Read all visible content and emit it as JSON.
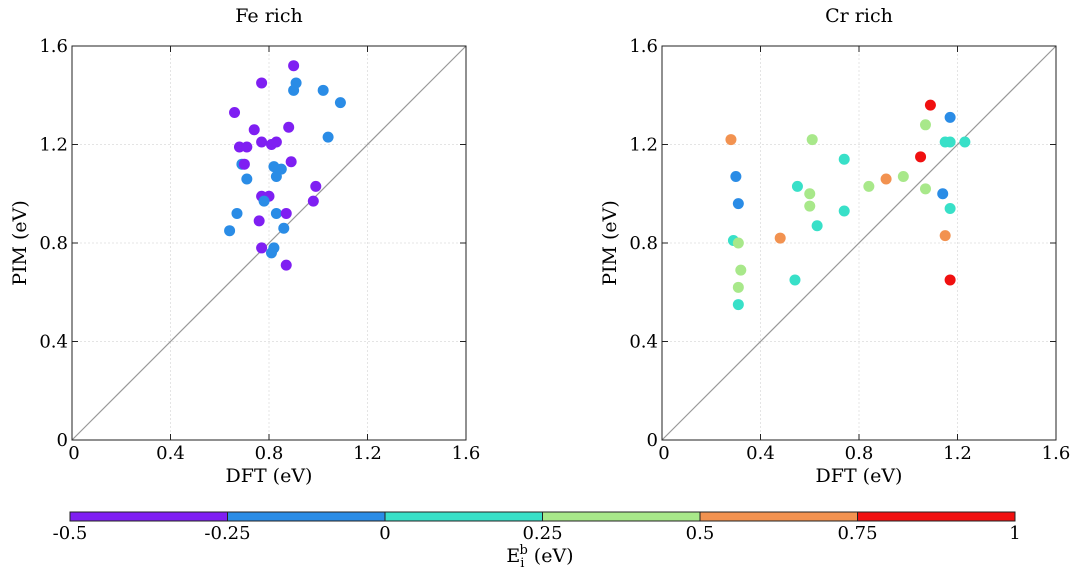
{
  "chart_data": [
    {
      "type": "scatter",
      "title": "Fe rich",
      "xlabel": "DFT (eV)",
      "ylabel": "PIM (eV)",
      "xlim": [
        0,
        1.6
      ],
      "ylim": [
        0,
        1.6
      ],
      "x_ticks": [
        "0",
        "0.4",
        "0.8",
        "1.2",
        "1.6"
      ],
      "y_ticks": [
        "0",
        "0.4",
        "0.8",
        "1.2",
        "1.6"
      ],
      "grid": true,
      "reference_line": "y = x",
      "color_value": "E_i^b (eV)",
      "points": [
        {
          "x": 0.9,
          "y": 1.52,
          "c": -0.4
        },
        {
          "x": 0.77,
          "y": 1.45,
          "c": -0.4
        },
        {
          "x": 0.91,
          "y": 1.45,
          "c": -0.15
        },
        {
          "x": 0.9,
          "y": 1.42,
          "c": -0.15
        },
        {
          "x": 1.02,
          "y": 1.42,
          "c": -0.15
        },
        {
          "x": 1.09,
          "y": 1.37,
          "c": -0.15
        },
        {
          "x": 0.66,
          "y": 1.33,
          "c": -0.4
        },
        {
          "x": 0.88,
          "y": 1.27,
          "c": -0.4
        },
        {
          "x": 0.74,
          "y": 1.26,
          "c": -0.4
        },
        {
          "x": 1.04,
          "y": 1.23,
          "c": -0.15
        },
        {
          "x": 0.77,
          "y": 1.21,
          "c": -0.4
        },
        {
          "x": 0.81,
          "y": 1.2,
          "c": -0.4
        },
        {
          "x": 0.83,
          "y": 1.21,
          "c": -0.4
        },
        {
          "x": 0.68,
          "y": 1.19,
          "c": -0.4
        },
        {
          "x": 0.71,
          "y": 1.19,
          "c": -0.4
        },
        {
          "x": 0.69,
          "y": 1.12,
          "c": -0.15
        },
        {
          "x": 0.7,
          "y": 1.12,
          "c": -0.4
        },
        {
          "x": 0.82,
          "y": 1.11,
          "c": -0.15
        },
        {
          "x": 0.85,
          "y": 1.1,
          "c": -0.15
        },
        {
          "x": 0.89,
          "y": 1.13,
          "c": -0.4
        },
        {
          "x": 0.71,
          "y": 1.06,
          "c": -0.15
        },
        {
          "x": 0.83,
          "y": 1.07,
          "c": -0.15
        },
        {
          "x": 0.99,
          "y": 1.03,
          "c": -0.4
        },
        {
          "x": 0.77,
          "y": 0.99,
          "c": -0.4
        },
        {
          "x": 0.8,
          "y": 0.99,
          "c": -0.4
        },
        {
          "x": 0.78,
          "y": 0.97,
          "c": -0.15
        },
        {
          "x": 0.98,
          "y": 0.97,
          "c": -0.4
        },
        {
          "x": 0.67,
          "y": 0.92,
          "c": -0.15
        },
        {
          "x": 0.83,
          "y": 0.92,
          "c": -0.15
        },
        {
          "x": 0.87,
          "y": 0.92,
          "c": -0.4
        },
        {
          "x": 0.76,
          "y": 0.89,
          "c": -0.4
        },
        {
          "x": 0.64,
          "y": 0.85,
          "c": -0.15
        },
        {
          "x": 0.86,
          "y": 0.86,
          "c": -0.15
        },
        {
          "x": 0.77,
          "y": 0.78,
          "c": -0.4
        },
        {
          "x": 0.82,
          "y": 0.78,
          "c": -0.15
        },
        {
          "x": 0.81,
          "y": 0.76,
          "c": -0.15
        },
        {
          "x": 0.87,
          "y": 0.71,
          "c": -0.4
        }
      ]
    },
    {
      "type": "scatter",
      "title": "Cr rich",
      "xlabel": "DFT (eV)",
      "ylabel": "PIM (eV)",
      "xlim": [
        0,
        1.6
      ],
      "ylim": [
        0,
        1.6
      ],
      "x_ticks": [
        "0",
        "0.4",
        "0.8",
        "1.2",
        "1.6"
      ],
      "y_ticks": [
        "0",
        "0.4",
        "0.8",
        "1.2",
        "1.6"
      ],
      "grid": true,
      "reference_line": "y = x",
      "color_value": "E_i^b (eV)",
      "points": [
        {
          "x": 1.09,
          "y": 1.36,
          "c": 0.9
        },
        {
          "x": 1.17,
          "y": 1.31,
          "c": -0.15
        },
        {
          "x": 1.07,
          "y": 1.28,
          "c": 0.4
        },
        {
          "x": 0.28,
          "y": 1.22,
          "c": 0.65
        },
        {
          "x": 0.61,
          "y": 1.22,
          "c": 0.4
        },
        {
          "x": 1.15,
          "y": 1.21,
          "c": 0.15
        },
        {
          "x": 1.17,
          "y": 1.21,
          "c": 0.15
        },
        {
          "x": 1.23,
          "y": 1.21,
          "c": 0.15
        },
        {
          "x": 1.05,
          "y": 1.15,
          "c": 0.9
        },
        {
          "x": 0.74,
          "y": 1.14,
          "c": 0.15
        },
        {
          "x": 0.3,
          "y": 1.07,
          "c": -0.15
        },
        {
          "x": 0.91,
          "y": 1.06,
          "c": 0.65
        },
        {
          "x": 0.98,
          "y": 1.07,
          "c": 0.4
        },
        {
          "x": 0.55,
          "y": 1.03,
          "c": 0.15
        },
        {
          "x": 0.84,
          "y": 1.03,
          "c": 0.4
        },
        {
          "x": 1.07,
          "y": 1.02,
          "c": 0.4
        },
        {
          "x": 0.6,
          "y": 1.0,
          "c": 0.4
        },
        {
          "x": 1.14,
          "y": 1.0,
          "c": -0.15
        },
        {
          "x": 0.31,
          "y": 0.96,
          "c": -0.15
        },
        {
          "x": 0.6,
          "y": 0.95,
          "c": 0.4
        },
        {
          "x": 1.17,
          "y": 0.94,
          "c": 0.15
        },
        {
          "x": 0.74,
          "y": 0.93,
          "c": 0.15
        },
        {
          "x": 0.63,
          "y": 0.87,
          "c": 0.15
        },
        {
          "x": 1.15,
          "y": 0.83,
          "c": 0.65
        },
        {
          "x": 0.48,
          "y": 0.82,
          "c": 0.65
        },
        {
          "x": 0.29,
          "y": 0.81,
          "c": 0.15
        },
        {
          "x": 0.31,
          "y": 0.8,
          "c": 0.4
        },
        {
          "x": 0.32,
          "y": 0.69,
          "c": 0.4
        },
        {
          "x": 0.54,
          "y": 0.65,
          "c": 0.15
        },
        {
          "x": 1.17,
          "y": 0.65,
          "c": 0.9
        },
        {
          "x": 0.31,
          "y": 0.62,
          "c": 0.4
        },
        {
          "x": 0.31,
          "y": 0.55,
          "c": 0.15
        }
      ]
    }
  ],
  "colorbar": {
    "label_main": "E",
    "label_sub": "i",
    "label_sup": "b",
    "label_unit": " (eV)",
    "ticks": [
      "-0.5",
      "-0.25",
      "0",
      "0.25",
      "0.5",
      "0.75",
      "1"
    ],
    "bins": [
      {
        "from": -0.5,
        "to": -0.25,
        "color": "#7f1ff2"
      },
      {
        "from": -0.25,
        "to": 0,
        "color": "#2a8ce6"
      },
      {
        "from": 0,
        "to": 0.25,
        "color": "#38e0c8"
      },
      {
        "from": 0.25,
        "to": 0.5,
        "color": "#a8e88a"
      },
      {
        "from": 0.5,
        "to": 0.75,
        "color": "#f29250"
      },
      {
        "from": 0.75,
        "to": 1,
        "color": "#f01010"
      }
    ]
  }
}
